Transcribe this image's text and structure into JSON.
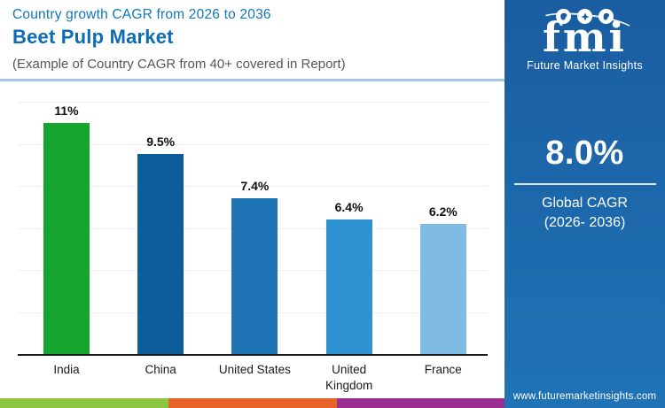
{
  "header": {
    "kicker": "Country growth CAGR from 2026 to 2036",
    "title": "Beet Pulp Market",
    "subtitle": "(Example of Country CAGR from 40+ covered in Report)",
    "kicker_color": "#1077bc",
    "title_color": "#0d6cb4",
    "subtitle_color": "#54565a",
    "rule_color": "#a9c9e4"
  },
  "chart_data": {
    "type": "bar",
    "title": "Country growth CAGR from 2026 to 2036 - Beet Pulp Market",
    "categories": [
      "India",
      "China",
      "United States",
      "United Kingdom",
      "France"
    ],
    "category_lines": [
      [
        "India"
      ],
      [
        "China"
      ],
      [
        "United States"
      ],
      [
        "United",
        "Kingdom"
      ],
      [
        "France"
      ]
    ],
    "values": [
      11,
      9.5,
      7.4,
      6.4,
      6.2
    ],
    "value_labels": [
      "11%",
      "9.5%",
      "7.4%",
      "6.4%",
      "6.2%"
    ],
    "bar_colors": [
      "#14a52f",
      "#0d5c9b",
      "#1e74b4",
      "#2f93d1",
      "#7fbbe2"
    ],
    "ylim": [
      0,
      12
    ],
    "grid_step": 2,
    "grid": true,
    "legend": false,
    "xlabel": "",
    "ylabel": ""
  },
  "sidebar": {
    "logo_text": "fmi",
    "logo_caption": "Future Market Insights",
    "globe_icons": [
      "globe-americas-icon",
      "globe-compass-icon",
      "globe-africa-icon"
    ],
    "stat_value": "8.0%",
    "stat_caption_line1": "Global CAGR",
    "stat_caption_line2": "(2026- 2036)",
    "website": "www.futuremarketinsights.com",
    "bg_top_color": "#1a5da1",
    "bg_bottom_color": "#1f73b5",
    "globe_color": "#1a5da1"
  },
  "footer_stripe": {
    "colors": [
      "#8cc640",
      "#e96329",
      "#9c2f92"
    ]
  }
}
